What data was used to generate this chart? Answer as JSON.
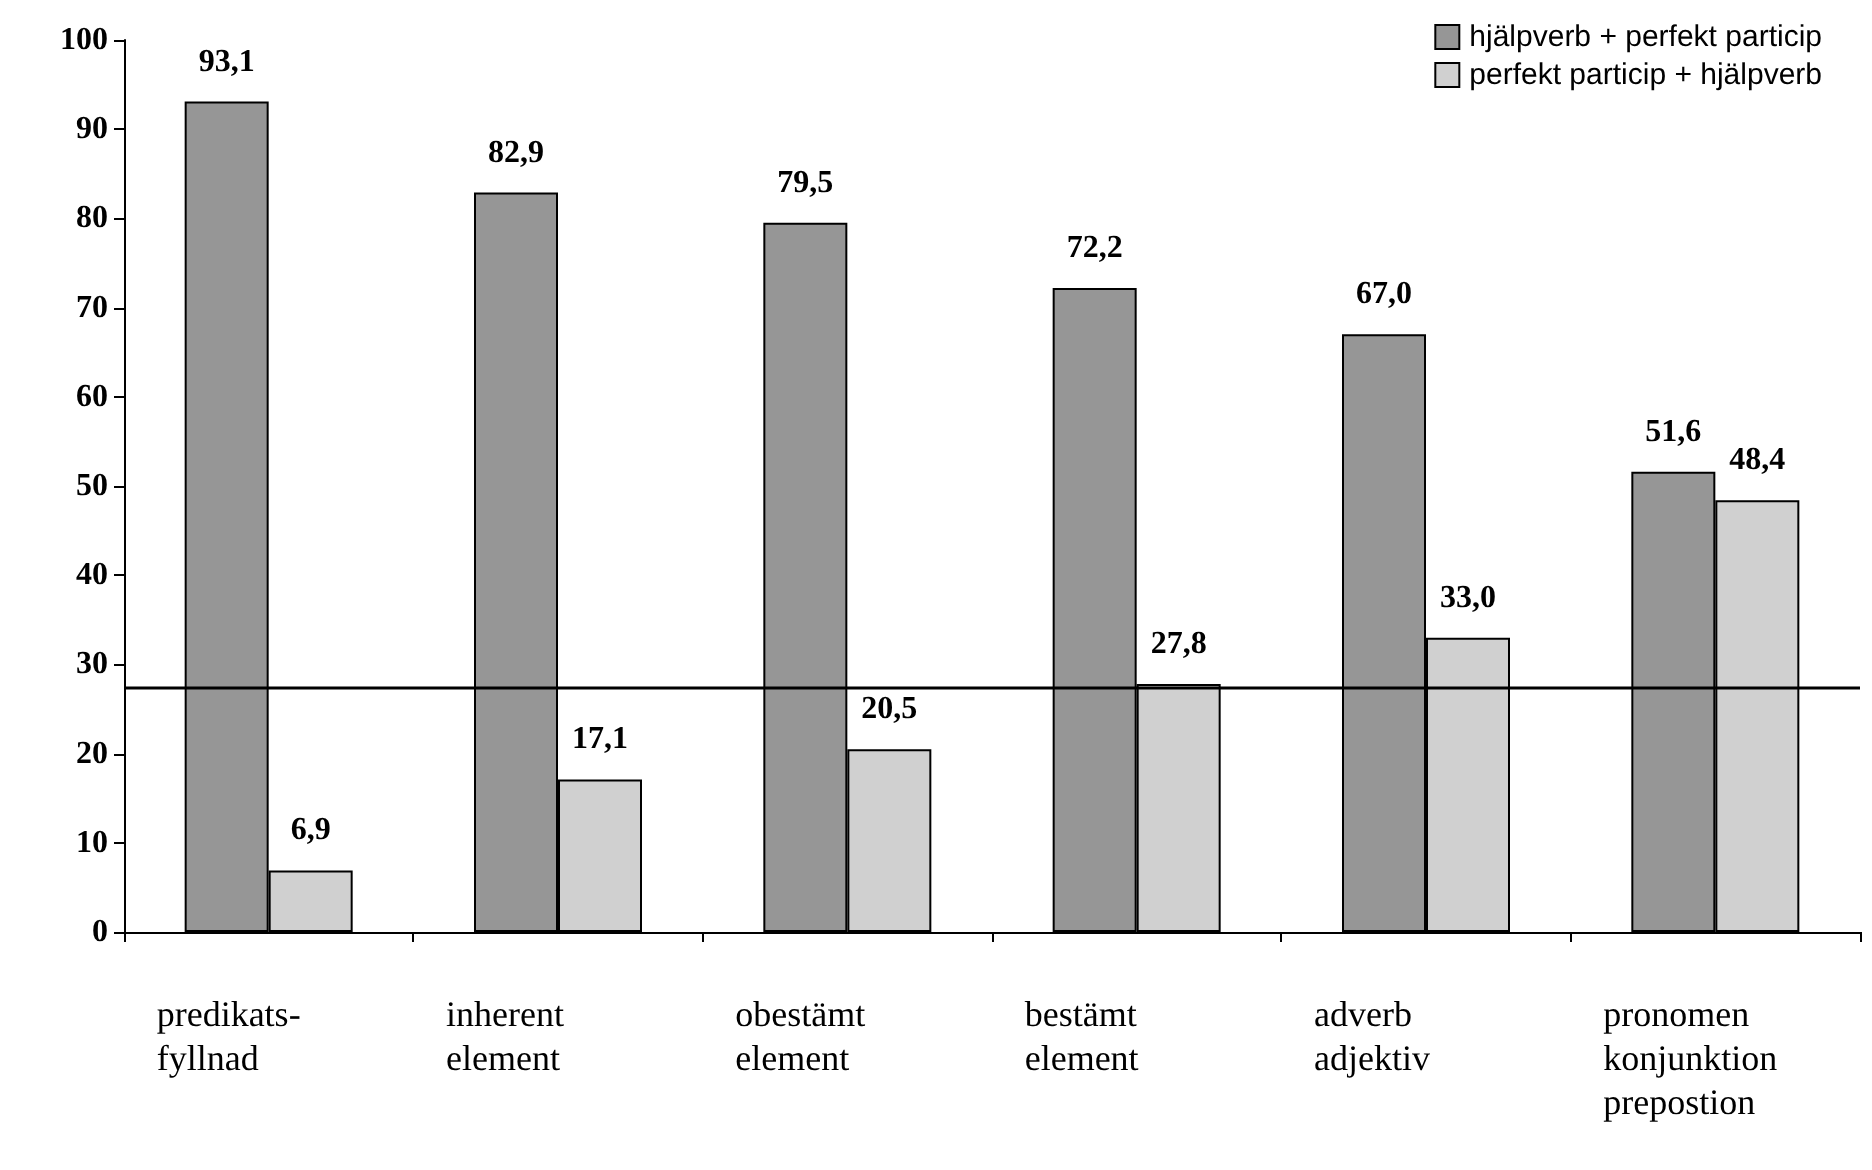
{
  "chart_data": {
    "type": "bar",
    "categories": [
      "predikats-\nfyllnad",
      "inherent\nelement",
      "obestämt\nelement",
      "bestämt\nelement",
      "adverb\nadjektiv",
      "pronomen\nkonjunktion\nprepostion"
    ],
    "series": [
      {
        "name": "hjälpverb + perfekt particip",
        "color": "#969696",
        "values": [
          93.1,
          82.9,
          79.5,
          72.2,
          67.0,
          51.6
        ],
        "value_labels": [
          "93,1",
          "82,9",
          "79,5",
          "72,2",
          "67,0",
          "51,6"
        ]
      },
      {
        "name": "perfekt particip + hjälpverb",
        "color": "#d0d0d0",
        "values": [
          6.9,
          17.1,
          20.5,
          27.8,
          33.0,
          48.4
        ],
        "value_labels": [
          "6,9",
          "17,1",
          "20,5",
          "27,8",
          "33,0",
          "48,4"
        ]
      }
    ],
    "ylim": [
      0,
      100
    ],
    "yticks": [
      0,
      10,
      20,
      30,
      40,
      50,
      60,
      70,
      80,
      90,
      100
    ],
    "ref_lines": [
      {
        "axis": "y",
        "value": 27.5,
        "color": "#000000"
      }
    ],
    "grid": false,
    "legend": "top right"
  }
}
